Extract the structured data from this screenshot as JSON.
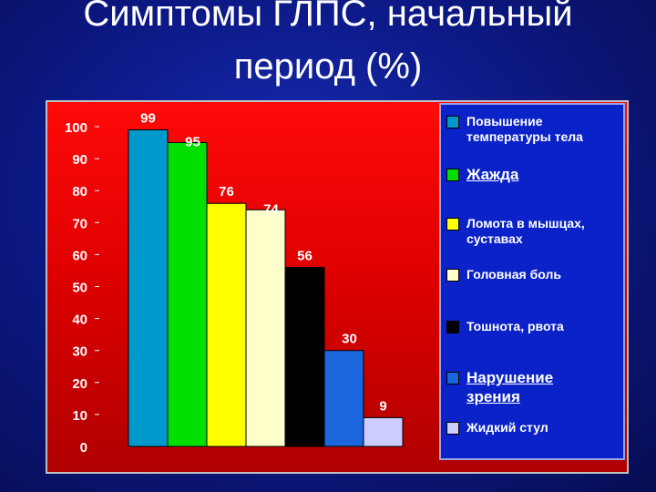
{
  "title_lines": [
    "Симптомы ГЛПС, начальный",
    "период (%)"
  ],
  "colors": {
    "slide_bg": "#0d1a8a",
    "panel_bg": "#e00000",
    "legend_bg": "#0a22c8",
    "text": "#ffffff"
  },
  "chart_data": {
    "type": "bar",
    "title": "Симптомы ГЛПС, начальный период (%)",
    "xlabel": "",
    "ylabel": "",
    "ylim": [
      0,
      100
    ],
    "yticks": [
      0,
      10,
      20,
      30,
      40,
      50,
      60,
      70,
      80,
      90,
      100
    ],
    "grid": false,
    "legend_position": "right",
    "series": [
      {
        "name": "Повышение температуры тела",
        "value": 99,
        "color": "#0099cc"
      },
      {
        "name": "Жажда",
        "value": 95,
        "color": "#00e000"
      },
      {
        "name": "Ломота в мышцах, суставах",
        "value": 76,
        "color": "#ffff00"
      },
      {
        "name": "Головная боль",
        "value": 74,
        "color": "#ffffcc"
      },
      {
        "name": "Тошнота, рвота",
        "value": 56,
        "color": "#000000"
      },
      {
        "name": "Нарушение зрения",
        "value": 30,
        "color": "#1a66dd"
      },
      {
        "name": "Жидкий стул",
        "value": 9,
        "color": "#ccccff"
      }
    ]
  }
}
